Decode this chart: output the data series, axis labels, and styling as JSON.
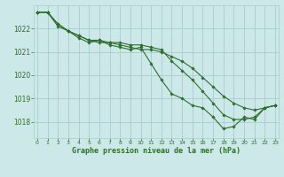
{
  "background_color": "#cce8e8",
  "grid_color": "#aacccc",
  "line_color": "#2d6e2d",
  "marker_color": "#2d6e2d",
  "xlabel": "Graphe pression niveau de la mer (hPa)",
  "ylim": [
    1017.3,
    1023.0
  ],
  "xlim": [
    -0.3,
    23.3
  ],
  "yticks": [
    1018,
    1019,
    1020,
    1021,
    1022
  ],
  "xticks": [
    0,
    1,
    2,
    3,
    4,
    5,
    6,
    7,
    8,
    9,
    10,
    11,
    12,
    13,
    14,
    15,
    16,
    17,
    18,
    19,
    20,
    21,
    22,
    23
  ],
  "series1": [
    1022.7,
    1022.7,
    1022.2,
    1021.9,
    1021.7,
    1021.5,
    1021.4,
    1021.4,
    1021.3,
    1021.2,
    1021.1,
    1021.1,
    1021.0,
    1020.8,
    1020.6,
    1020.3,
    1019.9,
    1019.5,
    1019.1,
    1018.8,
    1018.6,
    1018.5,
    1018.6,
    1018.7
  ],
  "series2": [
    1022.7,
    1022.7,
    1022.2,
    1021.9,
    1021.7,
    1021.5,
    1021.5,
    1021.4,
    1021.4,
    1021.3,
    1021.3,
    1021.2,
    1021.1,
    1020.6,
    1020.2,
    1019.8,
    1019.3,
    1018.8,
    1018.3,
    1018.1,
    1018.1,
    1018.2,
    1018.6,
    1018.7
  ],
  "series3": [
    1022.7,
    1022.7,
    1022.1,
    1021.9,
    1021.6,
    1021.4,
    1021.5,
    1021.3,
    1021.2,
    1021.1,
    1021.2,
    1020.5,
    1019.8,
    1019.2,
    1019.0,
    1018.7,
    1018.6,
    1018.2,
    1017.7,
    1017.8,
    1018.2,
    1018.1,
    1018.6,
    1018.7
  ]
}
